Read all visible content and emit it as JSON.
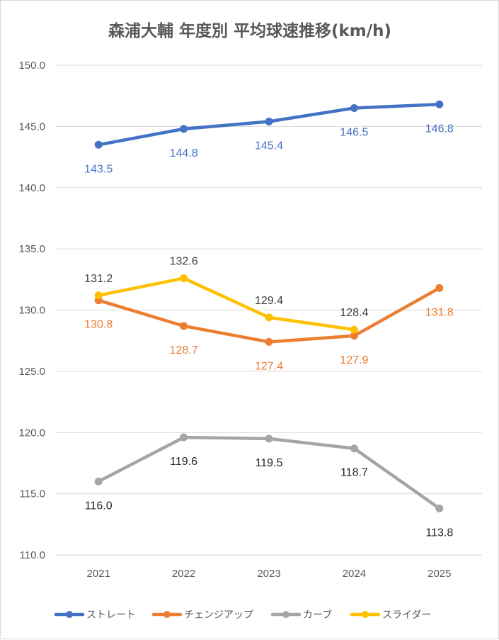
{
  "chart_data": {
    "type": "line",
    "title": "森浦大輔 年度別 平均球速推移(km/h)",
    "categories": [
      "2021",
      "2022",
      "2023",
      "2024",
      "2025"
    ],
    "ylim": [
      110.0,
      150.0
    ],
    "yticks": [
      "110.0",
      "115.0",
      "120.0",
      "125.0",
      "130.0",
      "135.0",
      "140.0",
      "145.0",
      "150.0"
    ],
    "grid": true,
    "legend_position": "bottom",
    "series": [
      {
        "name": "ストレート",
        "color": "#4472c4",
        "values": [
          143.5,
          144.8,
          145.4,
          146.5,
          146.8
        ],
        "labels": [
          "143.5",
          "144.8",
          "145.4",
          "146.5",
          "146.8"
        ],
        "label_position": [
          "below",
          "below",
          "below",
          "below",
          "below"
        ],
        "label_color": "#4472c4"
      },
      {
        "name": "チェンジアップ",
        "color": "#ed7d31",
        "values": [
          130.8,
          128.7,
          127.4,
          127.9,
          131.8
        ],
        "labels": [
          "130.8",
          "128.7",
          "127.4",
          "127.9",
          "131.8"
        ],
        "label_position": [
          "below",
          "below",
          "below",
          "below",
          "below"
        ],
        "label_color": "#ed7d31"
      },
      {
        "name": "カーブ",
        "color": "#a5a5a5",
        "values": [
          116.0,
          119.6,
          119.5,
          118.7,
          113.8
        ],
        "labels": [
          "116.0",
          "119.6",
          "119.5",
          "118.7",
          "113.8"
        ],
        "label_position": [
          "below",
          "below",
          "below",
          "below",
          "below"
        ],
        "label_color": "#262626"
      },
      {
        "name": "スライダー",
        "color": "#ffc000",
        "values": [
          131.2,
          132.6,
          129.4,
          128.4,
          null
        ],
        "labels": [
          "131.2",
          "132.6",
          "129.4",
          "128.4",
          null
        ],
        "label_position": [
          "above",
          "above",
          "above",
          "above",
          "above"
        ],
        "label_color": "#404040"
      }
    ]
  }
}
